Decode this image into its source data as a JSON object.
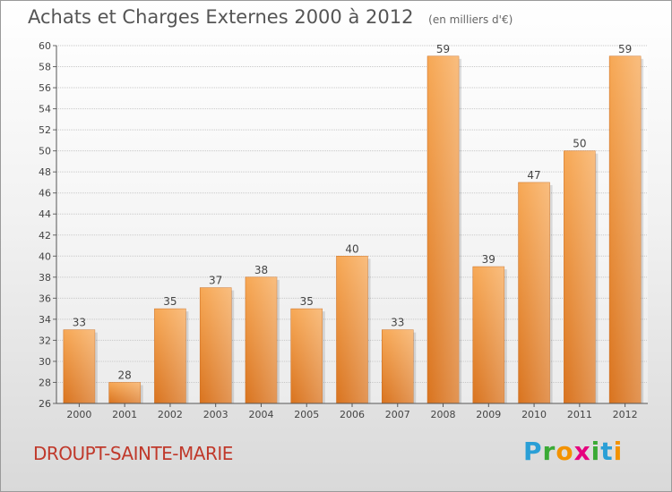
{
  "header": {
    "title": "Achats et Charges Externes 2000 à 2012",
    "subtitle": "(en milliers d'€)"
  },
  "footer": {
    "commune": "DROUPT-SAINTE-MARIE",
    "brand": {
      "letters": [
        "P",
        "r",
        "o",
        "x",
        "i",
        "t",
        "i"
      ],
      "colors": [
        "#2a9fd6",
        "#3aaa35",
        "#f39200",
        "#e6007e",
        "#3aaa35",
        "#2a9fd6",
        "#f39200"
      ]
    }
  },
  "chart_data": {
    "type": "bar",
    "title": "Achats et Charges Externes 2000 à 2012",
    "categories": [
      "2000",
      "2001",
      "2002",
      "2003",
      "2004",
      "2005",
      "2006",
      "2007",
      "2008",
      "2009",
      "2010",
      "2011",
      "2012"
    ],
    "values": [
      33,
      28,
      35,
      37,
      38,
      35,
      40,
      33,
      59,
      39,
      47,
      50,
      59
    ],
    "ylim": [
      26,
      60
    ],
    "yticks": [
      26,
      28,
      30,
      32,
      34,
      36,
      38,
      40,
      42,
      44,
      46,
      48,
      50,
      52,
      54,
      56,
      58,
      60
    ],
    "grid": true,
    "bar_color": "#f0922f"
  }
}
